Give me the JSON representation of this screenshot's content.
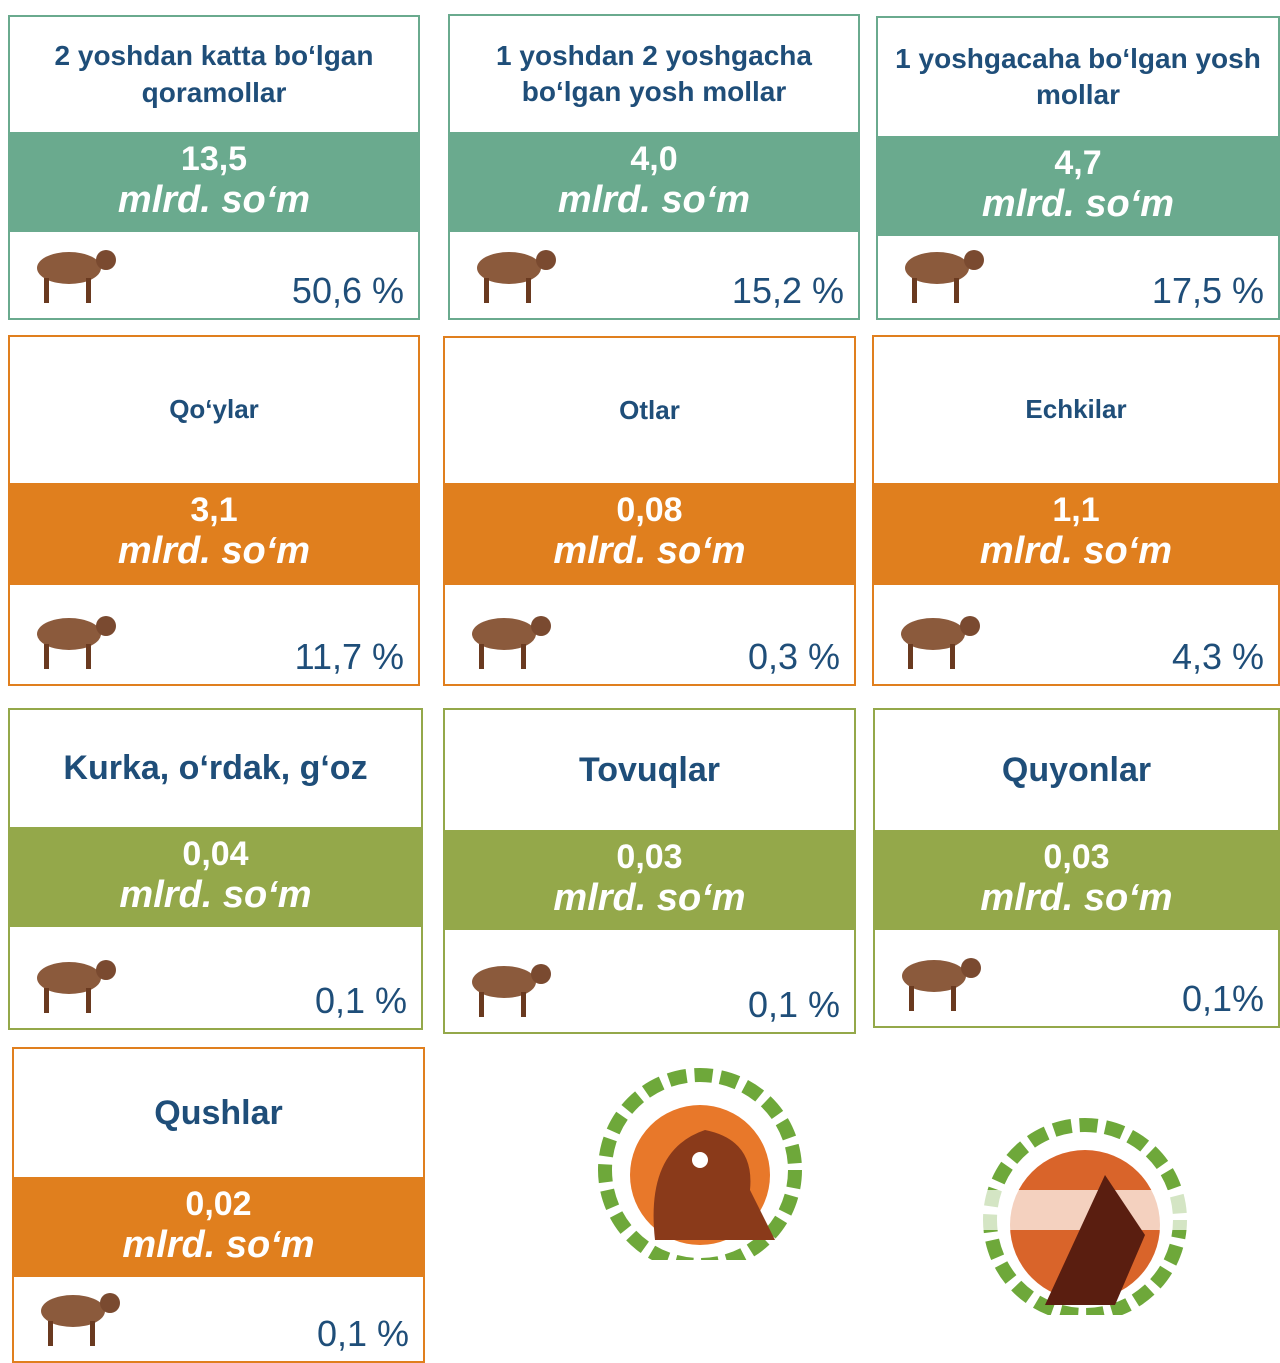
{
  "cards": [
    {
      "title": "2 yoshdan katta bo‘lgan qoramollar",
      "value": "13,5",
      "unit": "mlrd. so‘m",
      "share": "50,6 %",
      "color": "#6aaa8e"
    },
    {
      "title": "1 yoshdan 2 yoshgacha bo‘lgan yosh mollar",
      "value": "4,0",
      "unit": "mlrd. so‘m",
      "share": "15,2 %",
      "color": "#6aaa8e"
    },
    {
      "title": "1 yoshgacaha bo‘lgan yosh mollar",
      "value": "4,7",
      "unit": "mlrd. so‘m",
      "share": "17,5 %",
      "color": "#6aaa8e"
    },
    {
      "title": "Qo‘ylar",
      "value": "3,1",
      "unit": "mlrd. so‘m",
      "share": "11,7 %",
      "color": "#e07f1e"
    },
    {
      "title": "Otlar",
      "value": "0,08",
      "unit": "mlrd. so‘m",
      "share": "0,3 %",
      "color": "#e07f1e"
    },
    {
      "title": "Echkilar",
      "value": "1,1",
      "unit": "mlrd. so‘m",
      "share": "4,3 %",
      "color": "#e07f1e"
    },
    {
      "title": "Kurka, o‘rdak, g‘oz",
      "value": "0,04",
      "unit": "mlrd. so‘m",
      "share": "0,1 %",
      "color": "#94a84a"
    },
    {
      "title": "Tovuqlar",
      "value": "0,03",
      "unit": "mlrd. so‘m",
      "share": "0,1 %",
      "color": "#94a84a"
    },
    {
      "title": "Quyonlar",
      "value": "0,03",
      "unit": "mlrd. so‘m",
      "share": "0,1%",
      "color": "#94a84a"
    },
    {
      "title": "Qushlar",
      "value": "0,02",
      "unit": "mlrd. so‘m",
      "share": "0,1 %",
      "color": "#e07f1e"
    }
  ]
}
